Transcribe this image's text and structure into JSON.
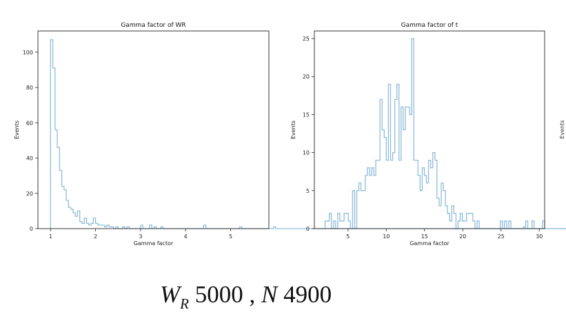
{
  "chart_data": [
    {
      "type": "histogram",
      "title": "Gamma factor of WR",
      "xlabel": "Gamma factor",
      "ylabel": "Events",
      "xlim": [
        0.72,
        5.85
      ],
      "ylim": [
        0,
        112
      ],
      "xticks": [
        1,
        2,
        3,
        4,
        5
      ],
      "yticks": [
        0,
        20,
        40,
        60,
        80,
        100
      ],
      "color": "#8fbcd9",
      "bin_start": 1.0,
      "bin_width": 0.05,
      "counts": [
        107,
        91,
        56,
        46,
        33,
        24,
        22,
        16,
        12,
        11,
        9,
        7,
        10,
        4,
        3,
        6,
        3,
        2,
        3,
        6,
        3,
        2,
        2,
        2,
        1,
        2,
        1,
        1,
        0,
        1,
        0,
        0,
        1,
        0,
        1,
        0,
        0,
        0,
        0,
        0,
        2,
        0,
        0,
        0,
        2,
        0,
        1,
        0,
        0,
        1,
        0,
        0,
        0,
        0,
        0,
        0,
        0,
        0,
        0,
        0,
        0,
        0,
        0,
        0,
        0,
        0,
        0,
        0,
        2,
        0,
        0,
        0,
        0,
        0,
        0,
        0,
        0,
        0,
        0,
        0,
        0,
        0,
        0,
        0,
        1,
        0,
        0,
        0,
        0,
        0,
        0,
        0,
        0,
        0,
        0,
        0,
        0,
        0,
        0,
        1,
        0,
        0,
        0,
        0,
        0,
        0,
        0,
        0,
        0,
        0,
        0,
        0,
        0,
        0,
        0,
        0,
        0,
        0,
        0,
        0,
        0,
        0,
        0,
        0,
        0,
        0,
        0,
        0,
        0,
        0,
        0,
        0,
        0,
        0,
        0,
        0,
        0,
        0,
        0,
        0,
        0,
        0,
        0,
        0,
        0,
        0,
        0,
        0,
        0,
        0,
        0,
        0,
        0,
        0,
        0,
        0,
        0,
        0,
        0,
        0,
        0,
        0,
        0,
        0,
        0,
        0,
        0,
        0,
        0,
        0,
        0,
        0,
        0,
        0,
        0,
        0,
        0,
        0,
        0,
        0,
        0,
        0,
        0,
        0,
        0,
        0,
        0,
        0,
        0,
        0,
        0,
        0,
        0,
        0,
        0,
        0,
        0,
        0,
        0,
        0,
        0,
        0,
        0,
        0,
        0,
        0,
        0,
        0,
        0,
        0,
        1,
        0,
        0,
        0,
        0,
        0,
        0,
        0,
        0,
        0,
        0,
        0,
        0,
        0,
        0,
        0,
        0,
        0,
        0,
        0,
        0,
        0,
        0,
        0,
        0,
        0,
        0,
        0,
        0,
        0,
        0,
        0,
        0,
        0,
        0,
        0,
        0,
        0,
        0,
        0,
        0,
        0,
        0,
        0,
        0,
        0,
        0,
        0,
        0,
        0,
        0,
        0,
        0,
        0,
        0,
        0,
        0,
        0,
        0,
        0,
        0,
        0,
        0,
        0,
        0,
        0,
        0,
        0,
        0,
        0,
        0,
        1
      ]
    },
    {
      "type": "histogram",
      "title": "Gamma factor of t",
      "xlabel": "Gamma factor",
      "ylabel": "Events",
      "xlim": [
        0.6,
        30.7
      ],
      "ylim": [
        0,
        26
      ],
      "xticks": [
        5,
        10,
        15,
        20,
        25,
        30
      ],
      "yticks": [
        0,
        5,
        10,
        15,
        20,
        25
      ],
      "color": "#8fbcd9",
      "bin_start": 2.0,
      "bin_width": 0.276,
      "counts": [
        1,
        1,
        2,
        0,
        1,
        0,
        2,
        1,
        1,
        2,
        2,
        1,
        0,
        5,
        0,
        5,
        6,
        5,
        5,
        7,
        8,
        7,
        8,
        7,
        9,
        9,
        17,
        13,
        12,
        9,
        19,
        9,
        10,
        17,
        19,
        9,
        16,
        13,
        16,
        16,
        15,
        25,
        9,
        9,
        7,
        5,
        8,
        7,
        6,
        9,
        8,
        10,
        9,
        4,
        3,
        6,
        5,
        3,
        2,
        1,
        3,
        2,
        0,
        1,
        2,
        1,
        1,
        2,
        2,
        2,
        1,
        0,
        1,
        0,
        0,
        0,
        0,
        0,
        0,
        0,
        0,
        0,
        0,
        1,
        0,
        1,
        0,
        1,
        0,
        0,
        0,
        0,
        0,
        0,
        0,
        1,
        0,
        0,
        1,
        0,
        0,
        0,
        0,
        1,
        0,
        0,
        0,
        0,
        0,
        0,
        0,
        0,
        0,
        0,
        0,
        0,
        0,
        0,
        0,
        0,
        0,
        0,
        0,
        0,
        0,
        0,
        0,
        0,
        0,
        0,
        0,
        0,
        0,
        0,
        1
      ]
    }
  ],
  "caption": {
    "symbol_w": "W",
    "subscript": "R",
    "value_w": " 5000",
    "separator": " , ",
    "symbol_n": "N",
    "value_n": " 4900"
  }
}
